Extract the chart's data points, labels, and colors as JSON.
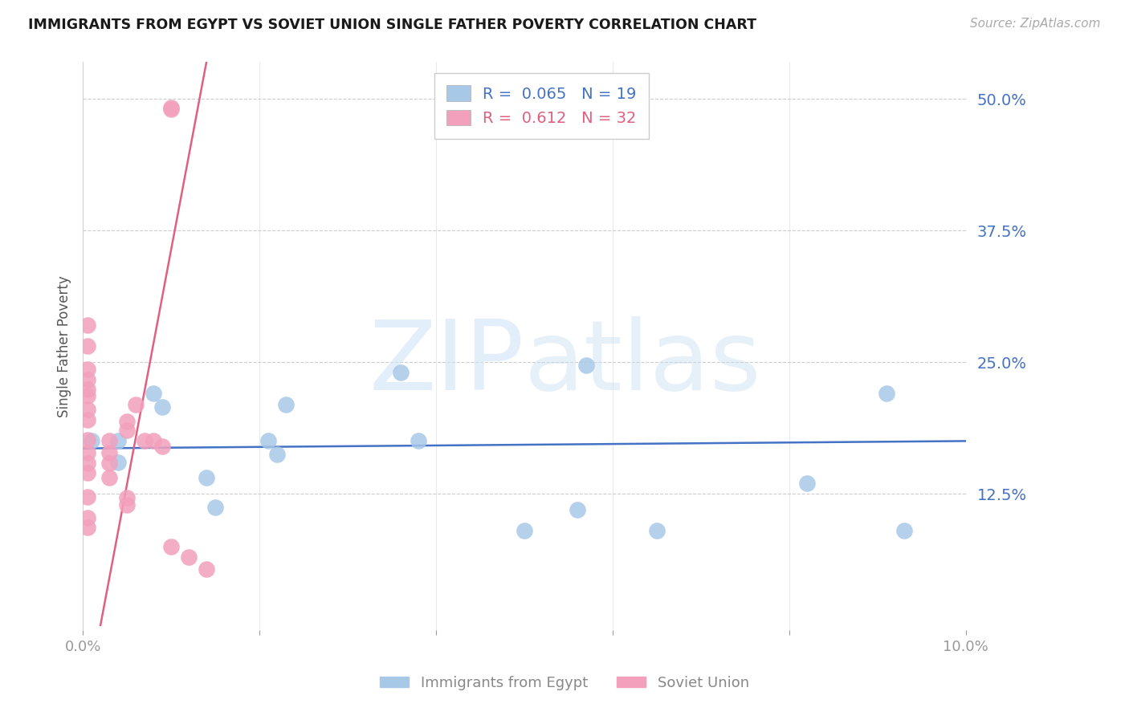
{
  "title": "IMMIGRANTS FROM EGYPT VS SOVIET UNION SINGLE FATHER POVERTY CORRELATION CHART",
  "source": "Source: ZipAtlas.com",
  "ylabel": "Single Father Poverty",
  "ytick_labels": [
    "12.5%",
    "25.0%",
    "37.5%",
    "50.0%"
  ],
  "ytick_values": [
    0.125,
    0.25,
    0.375,
    0.5
  ],
  "xmin": 0.0,
  "xmax": 0.1,
  "ymin": -0.005,
  "ymax": 0.535,
  "legend_label_egypt": "Immigrants from Egypt",
  "legend_label_soviet": "Soviet Union",
  "egypt_color": "#a8c8e8",
  "soviet_color": "#f2a0bc",
  "egypt_line_color": "#4472c4",
  "soviet_line_color": "#e06080",
  "egypt_R": 0.065,
  "egypt_N": 19,
  "soviet_R": 0.612,
  "soviet_N": 32,
  "egypt_x": [
    0.001,
    0.004,
    0.004,
    0.008,
    0.009,
    0.014,
    0.015,
    0.021,
    0.022,
    0.023,
    0.036,
    0.038,
    0.05,
    0.056,
    0.057,
    0.065,
    0.082,
    0.091,
    0.093
  ],
  "egypt_y": [
    0.175,
    0.175,
    0.155,
    0.22,
    0.207,
    0.14,
    0.112,
    0.175,
    0.162,
    0.21,
    0.24,
    0.175,
    0.09,
    0.11,
    0.247,
    0.09,
    0.135,
    0.22,
    0.09
  ],
  "soviet_x": [
    0.0005,
    0.0005,
    0.0005,
    0.0005,
    0.0005,
    0.0005,
    0.0005,
    0.0005,
    0.0005,
    0.0005,
    0.0005,
    0.0005,
    0.0005,
    0.0005,
    0.0005,
    0.003,
    0.003,
    0.003,
    0.003,
    0.005,
    0.005,
    0.005,
    0.005,
    0.006,
    0.007,
    0.008,
    0.009,
    0.01,
    0.01,
    0.01,
    0.012,
    0.014
  ],
  "soviet_y": [
    0.285,
    0.265,
    0.243,
    0.233,
    0.224,
    0.218,
    0.205,
    0.195,
    0.176,
    0.164,
    0.154,
    0.145,
    0.122,
    0.102,
    0.093,
    0.175,
    0.164,
    0.154,
    0.14,
    0.194,
    0.185,
    0.121,
    0.114,
    0.21,
    0.175,
    0.175,
    0.17,
    0.492,
    0.49,
    0.075,
    0.065,
    0.053
  ],
  "blue_line_x0": 0.0,
  "blue_line_x1": 0.1,
  "blue_line_y0": 0.168,
  "blue_line_y1": 0.175,
  "pink_line_x0": 0.002,
  "pink_line_x1": 0.014,
  "pink_line_y0": 0.0,
  "pink_line_y1": 0.535
}
